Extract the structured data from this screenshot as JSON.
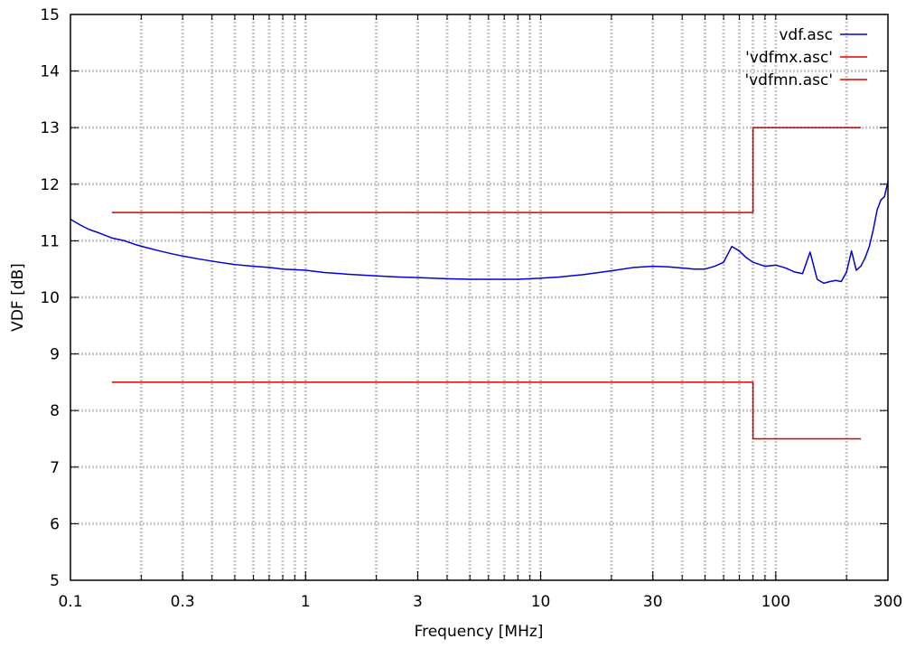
{
  "chart_data": {
    "type": "line",
    "xlabel": "Frequency [MHz]",
    "ylabel": "VDF [dB]",
    "xscale": "log",
    "xlim": [
      0.1,
      300
    ],
    "ylim": [
      5,
      15
    ],
    "x_ticks": [
      {
        "value": 0.1,
        "label": "0.1"
      },
      {
        "value": 0.3,
        "label": "0.3"
      },
      {
        "value": 1,
        "label": "1"
      },
      {
        "value": 3,
        "label": "3"
      },
      {
        "value": 10,
        "label": "10"
      },
      {
        "value": 30,
        "label": "30"
      },
      {
        "value": 100,
        "label": "100"
      },
      {
        "value": 300,
        "label": "300"
      }
    ],
    "y_ticks": [
      5,
      6,
      7,
      8,
      9,
      10,
      11,
      12,
      13,
      14,
      15
    ],
    "grid": true,
    "legend_position": "top-right",
    "series": [
      {
        "name": "vdf.asc",
        "color": "#0000dd",
        "x": [
          0.1,
          0.11,
          0.12,
          0.13,
          0.14,
          0.15,
          0.17,
          0.19,
          0.21,
          0.24,
          0.27,
          0.3,
          0.35,
          0.4,
          0.5,
          0.6,
          0.7,
          0.8,
          1.0,
          1.2,
          1.5,
          2,
          2.5,
          3,
          4,
          5,
          6,
          7,
          8,
          9,
          10,
          12,
          15,
          20,
          25,
          30,
          35,
          40,
          45,
          50,
          55,
          60,
          65,
          70,
          75,
          80,
          90,
          100,
          110,
          120,
          130,
          140,
          150,
          160,
          170,
          180,
          190,
          200,
          210,
          220,
          230,
          240,
          250,
          260,
          270,
          280,
          290,
          300
        ],
        "y": [
          11.38,
          11.28,
          11.2,
          11.15,
          11.1,
          11.05,
          11.0,
          10.93,
          10.88,
          10.82,
          10.77,
          10.73,
          10.68,
          10.64,
          10.58,
          10.55,
          10.53,
          10.5,
          10.48,
          10.44,
          10.41,
          10.38,
          10.36,
          10.35,
          10.33,
          10.32,
          10.32,
          10.32,
          10.32,
          10.33,
          10.34,
          10.36,
          10.4,
          10.47,
          10.53,
          10.55,
          10.54,
          10.52,
          10.5,
          10.5,
          10.55,
          10.62,
          10.9,
          10.82,
          10.7,
          10.62,
          10.55,
          10.57,
          10.52,
          10.45,
          10.42,
          10.8,
          10.32,
          10.25,
          10.28,
          10.3,
          10.28,
          10.45,
          10.82,
          10.48,
          10.55,
          10.7,
          10.9,
          11.2,
          11.55,
          11.72,
          11.78,
          12.05
        ]
      },
      {
        "name": "'vdfmx.asc'",
        "color": "#dd0000",
        "x": [
          0.15,
          80,
          80,
          230
        ],
        "y": [
          11.5,
          11.5,
          13.0,
          13.0
        ]
      },
      {
        "name": "'vdfmn.asc'",
        "color": "#dd0000",
        "x": [
          0.15,
          80,
          80,
          230
        ],
        "y": [
          8.5,
          8.5,
          7.5,
          7.5
        ]
      }
    ]
  }
}
